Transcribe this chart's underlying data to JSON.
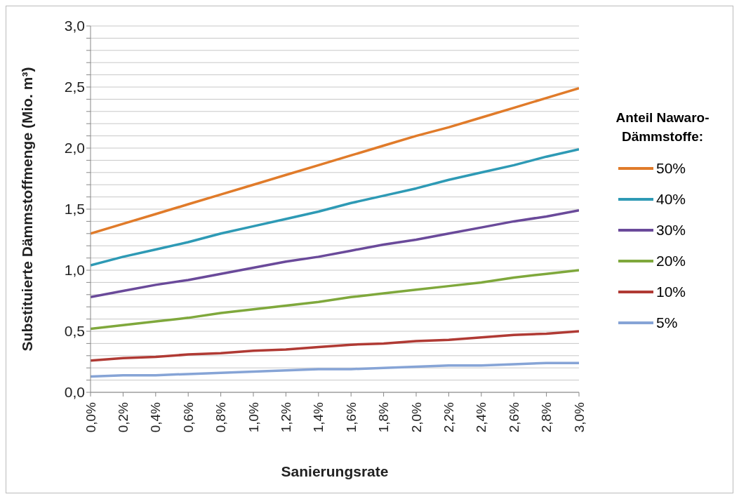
{
  "chart_data": {
    "type": "line",
    "xlabel": "Sanierungsrate",
    "ylabel": "Substituierte Dämmstoffmenge (Mio. m³)",
    "legend_title": "Anteil Nawaro-Dämmstoffe:",
    "x": [
      0,
      0.2,
      0.4,
      0.6,
      0.8,
      1.0,
      1.2,
      1.4,
      1.6,
      1.8,
      2.0,
      2.2,
      2.4,
      2.6,
      2.8,
      3.0
    ],
    "xlim": [
      0,
      3.0
    ],
    "xticks": [
      {
        "value": 0,
        "label": "0,0%"
      },
      {
        "value": 0.2,
        "label": "0,2%"
      },
      {
        "value": 0.4,
        "label": "0,4%"
      },
      {
        "value": 0.6,
        "label": "0,6%"
      },
      {
        "value": 0.8,
        "label": "0,8%"
      },
      {
        "value": 1.0,
        "label": "1,0%"
      },
      {
        "value": 1.2,
        "label": "1,2%"
      },
      {
        "value": 1.4,
        "label": "1,4%"
      },
      {
        "value": 1.6,
        "label": "1,6%"
      },
      {
        "value": 1.8,
        "label": "1,8%"
      },
      {
        "value": 2.0,
        "label": "2,0%"
      },
      {
        "value": 2.2,
        "label": "2,2%"
      },
      {
        "value": 2.4,
        "label": "2,4%"
      },
      {
        "value": 2.6,
        "label": "2,6%"
      },
      {
        "value": 2.8,
        "label": "2,8%"
      },
      {
        "value": 3.0,
        "label": "3,0%"
      }
    ],
    "ylim": [
      0,
      3.0
    ],
    "yticks": [
      {
        "value": 0,
        "label": "0,0"
      },
      {
        "value": 0.1,
        "label": null
      },
      {
        "value": 0.2,
        "label": null
      },
      {
        "value": 0.3,
        "label": null
      },
      {
        "value": 0.4,
        "label": null
      },
      {
        "value": 0.5,
        "label": "0,5"
      },
      {
        "value": 0.6,
        "label": null
      },
      {
        "value": 0.7,
        "label": null
      },
      {
        "value": 0.8,
        "label": null
      },
      {
        "value": 0.9,
        "label": null
      },
      {
        "value": 1.0,
        "label": "1,0"
      },
      {
        "value": 1.1,
        "label": null
      },
      {
        "value": 1.2,
        "label": null
      },
      {
        "value": 1.3,
        "label": null
      },
      {
        "value": 1.4,
        "label": null
      },
      {
        "value": 1.5,
        "label": "1,5"
      },
      {
        "value": 1.6,
        "label": null
      },
      {
        "value": 1.7,
        "label": null
      },
      {
        "value": 1.8,
        "label": null
      },
      {
        "value": 1.9,
        "label": null
      },
      {
        "value": 2.0,
        "label": "2,0"
      },
      {
        "value": 2.1,
        "label": null
      },
      {
        "value": 2.2,
        "label": null
      },
      {
        "value": 2.3,
        "label": null
      },
      {
        "value": 2.4,
        "label": null
      },
      {
        "value": 2.5,
        "label": "2,5"
      },
      {
        "value": 2.6,
        "label": null
      },
      {
        "value": 2.7,
        "label": null
      },
      {
        "value": 2.8,
        "label": null
      },
      {
        "value": 2.9,
        "label": null
      },
      {
        "value": 3.0,
        "label": "3,0"
      }
    ],
    "grid": "y",
    "legend": "right",
    "series": [
      {
        "name": "50%",
        "color": "#e07b2a",
        "values": [
          1.3,
          1.38,
          1.46,
          1.54,
          1.62,
          1.7,
          1.78,
          1.86,
          1.94,
          2.02,
          2.1,
          2.17,
          2.25,
          2.33,
          2.41,
          2.49
        ]
      },
      {
        "name": "40%",
        "color": "#2e9ab5",
        "values": [
          1.04,
          1.11,
          1.17,
          1.23,
          1.3,
          1.36,
          1.42,
          1.48,
          1.55,
          1.61,
          1.67,
          1.74,
          1.8,
          1.86,
          1.93,
          1.99
        ]
      },
      {
        "name": "30%",
        "color": "#6a4a9a",
        "values": [
          0.78,
          0.83,
          0.88,
          0.92,
          0.97,
          1.02,
          1.07,
          1.11,
          1.16,
          1.21,
          1.25,
          1.3,
          1.35,
          1.4,
          1.44,
          1.49
        ]
      },
      {
        "name": "20%",
        "color": "#7fa83c",
        "values": [
          0.52,
          0.55,
          0.58,
          0.61,
          0.65,
          0.68,
          0.71,
          0.74,
          0.78,
          0.81,
          0.84,
          0.87,
          0.9,
          0.94,
          0.97,
          1.0
        ]
      },
      {
        "name": "10%",
        "color": "#b03a34",
        "values": [
          0.26,
          0.28,
          0.29,
          0.31,
          0.32,
          0.34,
          0.35,
          0.37,
          0.39,
          0.4,
          0.42,
          0.43,
          0.45,
          0.47,
          0.48,
          0.5
        ]
      },
      {
        "name": "5%",
        "color": "#86a4d6",
        "values": [
          0.13,
          0.14,
          0.14,
          0.15,
          0.16,
          0.17,
          0.18,
          0.19,
          0.19,
          0.2,
          0.21,
          0.22,
          0.22,
          0.23,
          0.24,
          0.24
        ]
      }
    ]
  }
}
